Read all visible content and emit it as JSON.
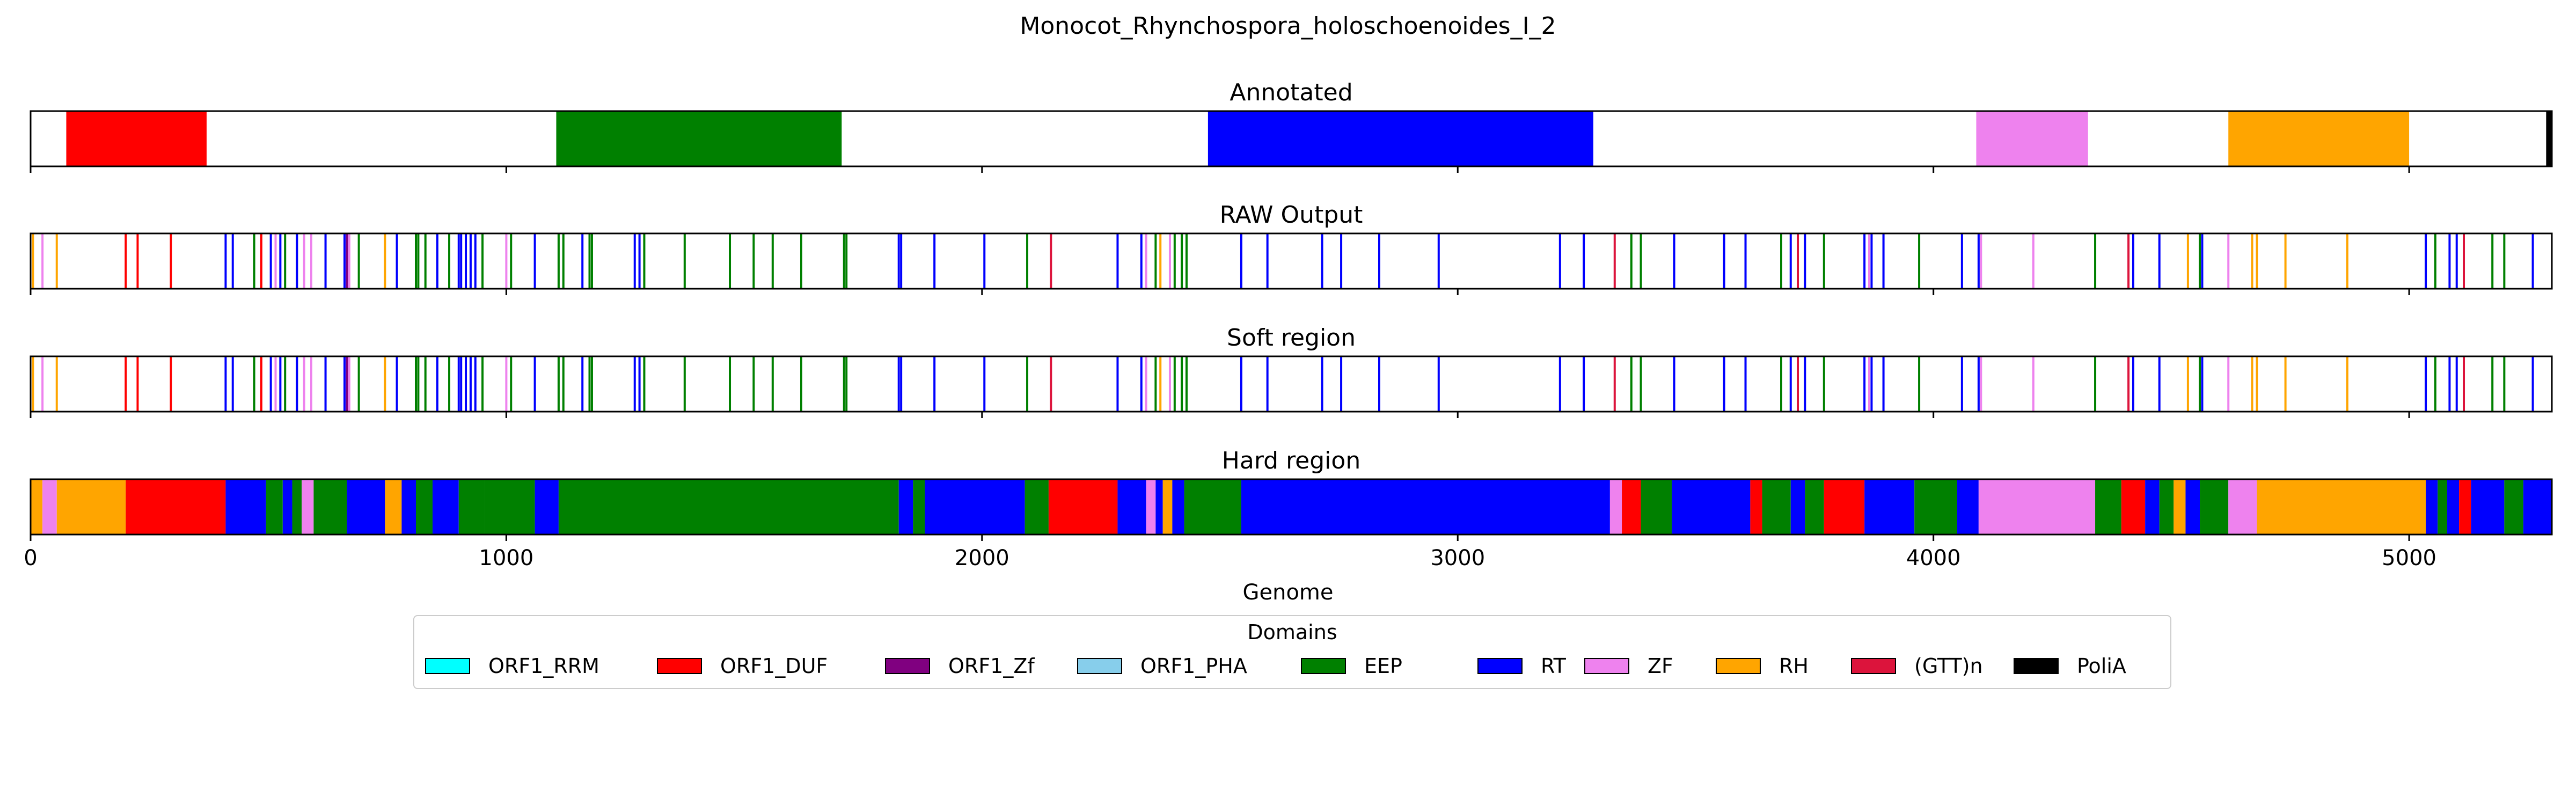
{
  "chart_data": {
    "type": "genome_track",
    "title": "Monocot_Rhynchospora_holoschoenoides_I_2",
    "xlabel": "Genome",
    "xlim": [
      0,
      5300
    ],
    "xticks": [
      0,
      1000,
      2000,
      3000,
      4000,
      5000
    ],
    "legend_title": "Domains",
    "domains": [
      {
        "name": "ORF1_RRM",
        "color": "#00FFFF"
      },
      {
        "name": "ORF1_DUF",
        "color": "#FF0000"
      },
      {
        "name": "ORF1_Zf",
        "color": "#800080"
      },
      {
        "name": "ORF1_PHA",
        "color": "#87CEEB"
      },
      {
        "name": "EEP",
        "color": "#008000"
      },
      {
        "name": "RT",
        "color": "#0000FF"
      },
      {
        "name": "ZF",
        "color": "#EE82EE"
      },
      {
        "name": "RH",
        "color": "#FFA500"
      },
      {
        "name": "(GTT)n",
        "color": "#DC143C"
      },
      {
        "name": "PoliA",
        "color": "#000000"
      }
    ],
    "tracks": [
      {
        "title": "Annotated",
        "mode": "segments",
        "segments": [
          {
            "start": 75,
            "end": 370,
            "domain": "ORF1_DUF"
          },
          {
            "start": 1105,
            "end": 1705,
            "domain": "EEP"
          },
          {
            "start": 2475,
            "end": 3285,
            "domain": "RT"
          },
          {
            "start": 4090,
            "end": 4325,
            "domain": "ZF"
          },
          {
            "start": 4620,
            "end": 5000,
            "domain": "RH"
          },
          {
            "start": 5288,
            "end": 5300,
            "domain": "PoliA"
          }
        ]
      },
      {
        "title": "RAW Output",
        "mode": "lines",
        "lines": [
          {
            "x": 5,
            "domain": "RH"
          },
          {
            "x": 25,
            "domain": "ZF"
          },
          {
            "x": 55,
            "domain": "RH"
          },
          {
            "x": 200,
            "domain": "ORF1_DUF"
          },
          {
            "x": 225,
            "domain": "ORF1_DUF"
          },
          {
            "x": 295,
            "domain": "ORF1_DUF"
          },
          {
            "x": 410,
            "domain": "RT"
          },
          {
            "x": 425,
            "domain": "RT"
          },
          {
            "x": 470,
            "domain": "EEP"
          },
          {
            "x": 485,
            "domain": "ORF1_DUF"
          },
          {
            "x": 505,
            "domain": "RT"
          },
          {
            "x": 515,
            "domain": "ZF"
          },
          {
            "x": 525,
            "domain": "RT"
          },
          {
            "x": 535,
            "domain": "EEP"
          },
          {
            "x": 560,
            "domain": "RT"
          },
          {
            "x": 575,
            "domain": "ZF"
          },
          {
            "x": 590,
            "domain": "ZF"
          },
          {
            "x": 620,
            "domain": "RT"
          },
          {
            "x": 660,
            "domain": "RT"
          },
          {
            "x": 665,
            "domain": "ORF1_Zf"
          },
          {
            "x": 670,
            "domain": "ZF"
          },
          {
            "x": 690,
            "domain": "EEP"
          },
          {
            "x": 745,
            "domain": "RH"
          },
          {
            "x": 770,
            "domain": "RT"
          },
          {
            "x": 810,
            "domain": "EEP"
          },
          {
            "x": 815,
            "domain": "EEP"
          },
          {
            "x": 830,
            "domain": "EEP"
          },
          {
            "x": 855,
            "domain": "RT"
          },
          {
            "x": 880,
            "domain": "EEP"
          },
          {
            "x": 900,
            "domain": "RT"
          },
          {
            "x": 905,
            "domain": "RT"
          },
          {
            "x": 915,
            "domain": "RT"
          },
          {
            "x": 925,
            "domain": "RT"
          },
          {
            "x": 935,
            "domain": "RT"
          },
          {
            "x": 950,
            "domain": "EEP"
          },
          {
            "x": 1000,
            "domain": "ZF"
          },
          {
            "x": 1010,
            "domain": "EEP"
          },
          {
            "x": 1060,
            "domain": "RT"
          },
          {
            "x": 1110,
            "domain": "EEP"
          },
          {
            "x": 1120,
            "domain": "EEP"
          },
          {
            "x": 1160,
            "domain": "RT"
          },
          {
            "x": 1175,
            "domain": "EEP"
          },
          {
            "x": 1180,
            "domain": "EEP"
          },
          {
            "x": 1270,
            "domain": "RT"
          },
          {
            "x": 1280,
            "domain": "RT"
          },
          {
            "x": 1290,
            "domain": "EEP"
          },
          {
            "x": 1375,
            "domain": "EEP"
          },
          {
            "x": 1470,
            "domain": "EEP"
          },
          {
            "x": 1520,
            "domain": "EEP"
          },
          {
            "x": 1560,
            "domain": "EEP"
          },
          {
            "x": 1620,
            "domain": "EEP"
          },
          {
            "x": 1710,
            "domain": "EEP"
          },
          {
            "x": 1715,
            "domain": "EEP"
          },
          {
            "x": 1825,
            "domain": "RT"
          },
          {
            "x": 1830,
            "domain": "RT"
          },
          {
            "x": 1900,
            "domain": "RT"
          },
          {
            "x": 2005,
            "domain": "RT"
          },
          {
            "x": 2095,
            "domain": "EEP"
          },
          {
            "x": 2145,
            "domain": "(GTT)n"
          },
          {
            "x": 2285,
            "domain": "RT"
          },
          {
            "x": 2335,
            "domain": "RT"
          },
          {
            "x": 2345,
            "domain": "ZF"
          },
          {
            "x": 2365,
            "domain": "EEP"
          },
          {
            "x": 2375,
            "domain": "RH"
          },
          {
            "x": 2395,
            "domain": "ZF"
          },
          {
            "x": 2405,
            "domain": "EEP"
          },
          {
            "x": 2420,
            "domain": "EEP"
          },
          {
            "x": 2430,
            "domain": "EEP"
          },
          {
            "x": 2545,
            "domain": "RT"
          },
          {
            "x": 2600,
            "domain": "RT"
          },
          {
            "x": 2715,
            "domain": "RT"
          },
          {
            "x": 2755,
            "domain": "RT"
          },
          {
            "x": 2835,
            "domain": "RT"
          },
          {
            "x": 2960,
            "domain": "RT"
          },
          {
            "x": 3215,
            "domain": "RT"
          },
          {
            "x": 3265,
            "domain": "RT"
          },
          {
            "x": 3330,
            "domain": "(GTT)n"
          },
          {
            "x": 3365,
            "domain": "EEP"
          },
          {
            "x": 3385,
            "domain": "EEP"
          },
          {
            "x": 3455,
            "domain": "RT"
          },
          {
            "x": 3560,
            "domain": "RT"
          },
          {
            "x": 3605,
            "domain": "RT"
          },
          {
            "x": 3680,
            "domain": "EEP"
          },
          {
            "x": 3700,
            "domain": "RT"
          },
          {
            "x": 3715,
            "domain": "(GTT)n"
          },
          {
            "x": 3730,
            "domain": "RT"
          },
          {
            "x": 3770,
            "domain": "EEP"
          },
          {
            "x": 3855,
            "domain": "RT"
          },
          {
            "x": 3865,
            "domain": "ZF"
          },
          {
            "x": 3870,
            "domain": "RT"
          },
          {
            "x": 3895,
            "domain": "RT"
          },
          {
            "x": 3970,
            "domain": "EEP"
          },
          {
            "x": 4060,
            "domain": "RT"
          },
          {
            "x": 4095,
            "domain": "RT"
          },
          {
            "x": 4100,
            "domain": "ZF"
          },
          {
            "x": 4210,
            "domain": "ZF"
          },
          {
            "x": 4340,
            "domain": "EEP"
          },
          {
            "x": 4410,
            "domain": "(GTT)n"
          },
          {
            "x": 4420,
            "domain": "RT"
          },
          {
            "x": 4475,
            "domain": "RT"
          },
          {
            "x": 4535,
            "domain": "RH"
          },
          {
            "x": 4560,
            "domain": "EEP"
          },
          {
            "x": 4565,
            "domain": "RT"
          },
          {
            "x": 4620,
            "domain": "ZF"
          },
          {
            "x": 4670,
            "domain": "RH"
          },
          {
            "x": 4680,
            "domain": "RH"
          },
          {
            "x": 4740,
            "domain": "RH"
          },
          {
            "x": 4870,
            "domain": "RH"
          },
          {
            "x": 5035,
            "domain": "RT"
          },
          {
            "x": 5055,
            "domain": "EEP"
          },
          {
            "x": 5085,
            "domain": "RT"
          },
          {
            "x": 5100,
            "domain": "RT"
          },
          {
            "x": 5115,
            "domain": "(GTT)n"
          },
          {
            "x": 5175,
            "domain": "EEP"
          },
          {
            "x": 5200,
            "domain": "EEP"
          },
          {
            "x": 5260,
            "domain": "RT"
          }
        ]
      },
      {
        "title": "Soft region",
        "mode": "lines",
        "same_as": "RAW Output"
      },
      {
        "title": "Hard region",
        "mode": "segments",
        "segments": [
          {
            "start": 0,
            "end": 25,
            "domain": "RH"
          },
          {
            "start": 25,
            "end": 55,
            "domain": "ZF"
          },
          {
            "start": 55,
            "end": 200,
            "domain": "RH"
          },
          {
            "start": 200,
            "end": 410,
            "domain": "ORF1_DUF"
          },
          {
            "start": 410,
            "end": 495,
            "domain": "RT"
          },
          {
            "start": 495,
            "end": 530,
            "domain": "EEP"
          },
          {
            "start": 530,
            "end": 550,
            "domain": "RT"
          },
          {
            "start": 550,
            "end": 570,
            "domain": "EEP"
          },
          {
            "start": 570,
            "end": 595,
            "domain": "ZF"
          },
          {
            "start": 595,
            "end": 665,
            "domain": "EEP"
          },
          {
            "start": 665,
            "end": 745,
            "domain": "RT"
          },
          {
            "start": 745,
            "end": 780,
            "domain": "RH"
          },
          {
            "start": 780,
            "end": 810,
            "domain": "RT"
          },
          {
            "start": 810,
            "end": 845,
            "domain": "EEP"
          },
          {
            "start": 845,
            "end": 900,
            "domain": "RT"
          },
          {
            "start": 900,
            "end": 955,
            "domain": "EEP"
          },
          {
            "start": 955,
            "end": 1060,
            "domain": "EEP"
          },
          {
            "start": 1060,
            "end": 1110,
            "domain": "RT"
          },
          {
            "start": 1110,
            "end": 1730,
            "domain": "EEP"
          },
          {
            "start": 1730,
            "end": 1825,
            "domain": "EEP"
          },
          {
            "start": 1825,
            "end": 1855,
            "domain": "RT"
          },
          {
            "start": 1855,
            "end": 1880,
            "domain": "EEP"
          },
          {
            "start": 1880,
            "end": 2090,
            "domain": "RT"
          },
          {
            "start": 2090,
            "end": 2140,
            "domain": "EEP"
          },
          {
            "start": 2140,
            "end": 2285,
            "domain": "ORF1_DUF"
          },
          {
            "start": 2285,
            "end": 2345,
            "domain": "RT"
          },
          {
            "start": 2345,
            "end": 2365,
            "domain": "ZF"
          },
          {
            "start": 2365,
            "end": 2380,
            "domain": "RT"
          },
          {
            "start": 2380,
            "end": 2400,
            "domain": "RH"
          },
          {
            "start": 2400,
            "end": 2425,
            "domain": "RT"
          },
          {
            "start": 2425,
            "end": 2545,
            "domain": "EEP"
          },
          {
            "start": 2545,
            "end": 3320,
            "domain": "RT"
          },
          {
            "start": 3320,
            "end": 3345,
            "domain": "ZF"
          },
          {
            "start": 3345,
            "end": 3385,
            "domain": "ORF1_DUF"
          },
          {
            "start": 3385,
            "end": 3450,
            "domain": "EEP"
          },
          {
            "start": 3450,
            "end": 3615,
            "domain": "RT"
          },
          {
            "start": 3615,
            "end": 3640,
            "domain": "ORF1_DUF"
          },
          {
            "start": 3640,
            "end": 3700,
            "domain": "EEP"
          },
          {
            "start": 3700,
            "end": 3730,
            "domain": "RT"
          },
          {
            "start": 3730,
            "end": 3770,
            "domain": "EEP"
          },
          {
            "start": 3770,
            "end": 3855,
            "domain": "ORF1_DUF"
          },
          {
            "start": 3855,
            "end": 3960,
            "domain": "RT"
          },
          {
            "start": 3960,
            "end": 4050,
            "domain": "EEP"
          },
          {
            "start": 4050,
            "end": 4095,
            "domain": "RT"
          },
          {
            "start": 4095,
            "end": 4340,
            "domain": "ZF"
          },
          {
            "start": 4340,
            "end": 4395,
            "domain": "EEP"
          },
          {
            "start": 4395,
            "end": 4445,
            "domain": "ORF1_DUF"
          },
          {
            "start": 4445,
            "end": 4475,
            "domain": "RT"
          },
          {
            "start": 4475,
            "end": 4505,
            "domain": "EEP"
          },
          {
            "start": 4505,
            "end": 4530,
            "domain": "RH"
          },
          {
            "start": 4530,
            "end": 4560,
            "domain": "RT"
          },
          {
            "start": 4560,
            "end": 4620,
            "domain": "EEP"
          },
          {
            "start": 4620,
            "end": 4680,
            "domain": "ZF"
          },
          {
            "start": 4680,
            "end": 5035,
            "domain": "RH"
          },
          {
            "start": 5035,
            "end": 5060,
            "domain": "RT"
          },
          {
            "start": 5060,
            "end": 5080,
            "domain": "EEP"
          },
          {
            "start": 5080,
            "end": 5105,
            "domain": "RT"
          },
          {
            "start": 5105,
            "end": 5130,
            "domain": "ORF1_DUF"
          },
          {
            "start": 5130,
            "end": 5200,
            "domain": "RT"
          },
          {
            "start": 5200,
            "end": 5240,
            "domain": "EEP"
          },
          {
            "start": 5240,
            "end": 5300,
            "domain": "RT"
          }
        ]
      }
    ]
  }
}
